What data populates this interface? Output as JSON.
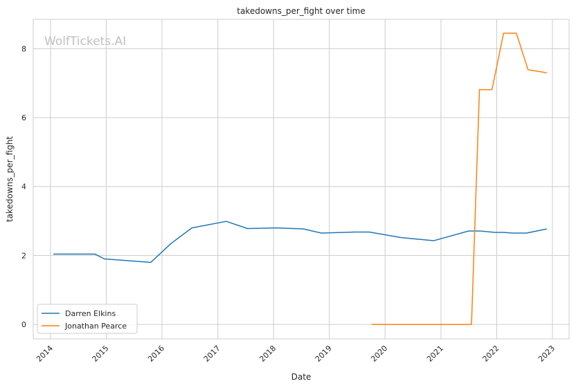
{
  "chart_data": {
    "type": "line",
    "title": "takedowns_per_fight over time",
    "xlabel": "Date",
    "ylabel": "takedowns_per_fight",
    "watermark": "WolfTickets.AI",
    "xlim": [
      "2013-09-10",
      "2023-04-20"
    ],
    "ylim": [
      -0.42,
      8.85
    ],
    "x_ticks": [
      "2014",
      "2015",
      "2016",
      "2017",
      "2018",
      "2019",
      "2020",
      "2021",
      "2022",
      "2023"
    ],
    "y_ticks": [
      0,
      2,
      4,
      6,
      8
    ],
    "grid": true,
    "legend_position": "lower-left",
    "series": [
      {
        "name": "Darren Elkins",
        "color": "#1f77b4",
        "points": [
          [
            "2014-01-20",
            2.04
          ],
          [
            "2014-10-20",
            2.04
          ],
          [
            "2014-12-20",
            1.9
          ],
          [
            "2015-10-20",
            1.8
          ],
          [
            "2016-03-01",
            2.35
          ],
          [
            "2016-07-15",
            2.8
          ],
          [
            "2017-02-25",
            2.99
          ],
          [
            "2017-07-15",
            2.78
          ],
          [
            "2018-01-15",
            2.8
          ],
          [
            "2018-07-15",
            2.77
          ],
          [
            "2018-11-10",
            2.65
          ],
          [
            "2019-06-15",
            2.68
          ],
          [
            "2019-09-20",
            2.68
          ],
          [
            "2020-04-15",
            2.52
          ],
          [
            "2020-11-15",
            2.43
          ],
          [
            "2021-07-01",
            2.71
          ],
          [
            "2021-09-15",
            2.71
          ],
          [
            "2021-12-20",
            2.67
          ],
          [
            "2022-02-15",
            2.67
          ],
          [
            "2022-04-15",
            2.65
          ],
          [
            "2022-07-15",
            2.65
          ],
          [
            "2022-11-25",
            2.77
          ]
        ]
      },
      {
        "name": "Jonathan Pearce",
        "color": "#ff7f0e",
        "points": [
          [
            "2019-10-05",
            0.0
          ],
          [
            "2021-07-20",
            0.0
          ],
          [
            "2021-09-10",
            6.81
          ],
          [
            "2021-12-01",
            6.81
          ],
          [
            "2022-02-15",
            8.45
          ],
          [
            "2022-05-10",
            8.45
          ],
          [
            "2022-07-25",
            7.39
          ],
          [
            "2022-11-25",
            7.3
          ]
        ]
      }
    ]
  }
}
